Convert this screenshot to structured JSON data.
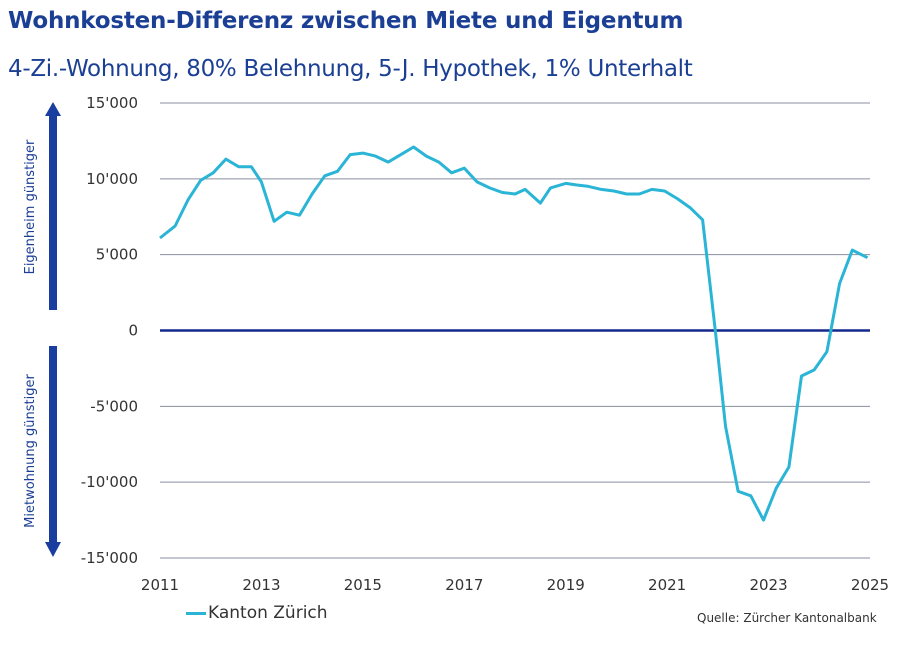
{
  "chart_data": {
    "type": "line",
    "title": "Wohnkosten-Differenz zwischen Miete und Eigentum",
    "subtitle": "4-Zi.-Wohnung, 80% Belehnung, 5-J. Hypothek, 1% Unterhalt",
    "xlabel": "",
    "ylabel": "",
    "xlim": [
      2011,
      2025
    ],
    "ylim": [
      -15000,
      15000
    ],
    "x_ticks": [
      "2011",
      "2013",
      "2015",
      "2017",
      "2019",
      "2021",
      "2023",
      "2025"
    ],
    "y_ticks": [
      {
        "value": 15000,
        "label": "15'000"
      },
      {
        "value": 10000,
        "label": "10'000"
      },
      {
        "value": 5000,
        "label": "5'000"
      },
      {
        "value": 0,
        "label": "0"
      },
      {
        "value": -5000,
        "label": "-5'000"
      },
      {
        "value": -10000,
        "label": "-10'000"
      },
      {
        "value": -15000,
        "label": "-15'000"
      }
    ],
    "grid": "horizontal",
    "annotations": {
      "up": "Eigenheim günstiger",
      "down": "Mietwohnung  günstiger"
    },
    "legend_position": "bottom-left",
    "series": [
      {
        "name": "Kanton Zürich",
        "color": "#2ab4d6",
        "x": [
          2011.0,
          2011.3,
          2011.55,
          2011.8,
          2012.05,
          2012.3,
          2012.55,
          2012.8,
          2013.0,
          2013.25,
          2013.5,
          2013.75,
          2014.0,
          2014.25,
          2014.5,
          2014.75,
          2015.0,
          2015.25,
          2015.5,
          2015.75,
          2016.0,
          2016.25,
          2016.5,
          2016.75,
          2017.0,
          2017.25,
          2017.5,
          2017.75,
          2018.0,
          2018.2,
          2018.5,
          2018.7,
          2019.0,
          2019.2,
          2019.45,
          2019.7,
          2019.95,
          2020.2,
          2020.45,
          2020.7,
          2020.95,
          2021.2,
          2021.45,
          2021.7,
          2021.95,
          2022.15,
          2022.4,
          2022.65,
          2022.9,
          2023.15,
          2023.4,
          2023.65,
          2023.9,
          2024.15,
          2024.4,
          2024.65,
          2024.95
        ],
        "y": [
          6100,
          6900,
          8600,
          9900,
          10400,
          11300,
          10800,
          10800,
          9800,
          7200,
          7800,
          7600,
          9000,
          10200,
          10500,
          11600,
          11700,
          11500,
          11100,
          11600,
          12100,
          11500,
          11100,
          10400,
          10700,
          9800,
          9400,
          9100,
          9000,
          9300,
          8400,
          9400,
          9700,
          9600,
          9500,
          9300,
          9200,
          9000,
          9000,
          9300,
          9200,
          8700,
          8100,
          7300,
          0,
          -6300,
          -10600,
          -10900,
          -12500,
          -10400,
          -9000,
          -3000,
          -2600,
          -1400,
          3100,
          5300,
          4800
        ]
      }
    ]
  },
  "source": "Quelle: Zürcher Kantonalbank",
  "colors": {
    "title": "#1b3f94",
    "zero_line": "#14288c",
    "grid": "#8a8fa0",
    "arrow": "#1a3ea0"
  }
}
